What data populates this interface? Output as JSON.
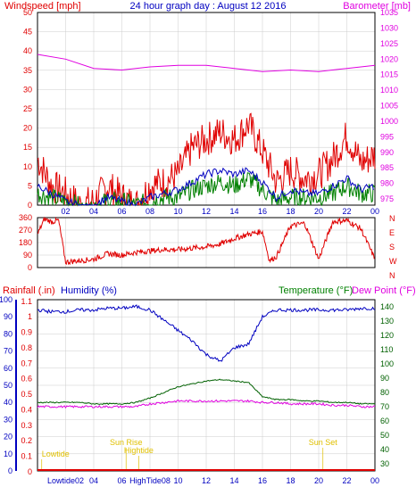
{
  "title": "24 hour graph day : August 12 2016",
  "colors": {
    "wind": "#e00000",
    "gust": "#e00000",
    "avgwind": "#0000c0",
    "green": "#008000",
    "baro": "#e000e0",
    "humidity": "#0000c0",
    "temp": "#006000",
    "dew": "#e000e0",
    "rain": "#e00000",
    "sun": "#e0c000",
    "grid": "#cccccc",
    "frame": "#000000"
  },
  "chart_data": [
    {
      "type": "line",
      "name": "wind-baro",
      "left_label": "Windspeed [mph]",
      "right_label": "Barometer [mb]",
      "x_ticks": [
        "02",
        "04",
        "06",
        "08",
        "10",
        "12",
        "14",
        "16",
        "18",
        "20",
        "22",
        "00"
      ],
      "y_left_ticks": [
        0,
        5,
        10,
        15,
        20,
        25,
        30,
        35,
        40,
        45,
        50
      ],
      "y_left_range": [
        0,
        50
      ],
      "y_right_ticks": [
        975,
        980,
        985,
        990,
        995,
        1000,
        1005,
        1010,
        1015,
        1020,
        1025,
        1030,
        1035
      ],
      "y_right_range": [
        973,
        1035
      ],
      "barometer": {
        "x": [
          0,
          2,
          4,
          6,
          8,
          10,
          12,
          14,
          16,
          18,
          20,
          22,
          24
        ],
        "y": [
          1021.5,
          1020,
          1017,
          1016.5,
          1017.5,
          1018,
          1018,
          1017,
          1016,
          1016.5,
          1016,
          1017,
          1018
        ]
      },
      "gust": {
        "x": [
          0,
          1,
          2,
          3,
          4,
          5,
          6,
          7,
          8,
          9,
          10,
          11,
          12,
          13,
          14,
          15,
          16,
          17,
          18,
          19,
          20,
          21,
          22,
          23,
          24
        ],
        "y": [
          12,
          5,
          3,
          0,
          1,
          5,
          2,
          0,
          5,
          6,
          8,
          15,
          17,
          19,
          17,
          21,
          14,
          6,
          9,
          7,
          8,
          12,
          18,
          11,
          13
        ]
      },
      "average": {
        "x": [
          0,
          1,
          2,
          3,
          4,
          5,
          6,
          7,
          8,
          9,
          10,
          11,
          12,
          13,
          14,
          15,
          16,
          17,
          18,
          19,
          20,
          21,
          22,
          23,
          24
        ],
        "y": [
          5,
          3,
          1,
          0,
          0,
          2,
          1,
          0,
          2,
          3,
          4,
          6,
          8,
          9,
          8,
          9,
          6,
          2,
          4,
          3,
          3,
          5,
          7,
          4,
          5
        ]
      },
      "direction_avg": {
        "x": [
          0,
          1,
          2,
          3,
          4,
          5,
          6,
          7,
          8,
          9,
          10,
          11,
          12,
          13,
          14,
          15,
          16,
          17,
          18,
          19,
          20,
          21,
          22,
          23,
          24
        ],
        "y": [
          3,
          2,
          1,
          0,
          0,
          1,
          1,
          0,
          1,
          2,
          2,
          4,
          5,
          6,
          5,
          7,
          4,
          1,
          2,
          2,
          2,
          3,
          5,
          3,
          3
        ]
      }
    },
    {
      "type": "scatter",
      "name": "wind-direction",
      "y_left_ticks": [
        0,
        90,
        180,
        270,
        360
      ],
      "y_right_labels": [
        "N",
        "W",
        "S",
        "E",
        "N"
      ],
      "y_range": [
        0,
        360
      ],
      "x": [
        0,
        0.5,
        1,
        1.5,
        2,
        3,
        4,
        5,
        6,
        7,
        8,
        9,
        10,
        11,
        12,
        13,
        14,
        15,
        16,
        16.5,
        17,
        18,
        19,
        20,
        21,
        22,
        23,
        24
      ],
      "y": [
        240,
        350,
        330,
        340,
        40,
        50,
        60,
        100,
        90,
        110,
        120,
        130,
        130,
        140,
        150,
        170,
        210,
        240,
        260,
        50,
        80,
        300,
        320,
        60,
        330,
        340,
        280,
        60
      ]
    },
    {
      "type": "line",
      "name": "humidity-temp-rain",
      "left_label_rain": "Rainfall (.in)",
      "left_label_hum": "Humidity (%)",
      "right_label_temp": "Temperature (°F)",
      "right_label_dew": "Dew Point (°F)",
      "x_ticks": [
        "Lowtide02",
        "04",
        "06",
        "HighTide08",
        "10",
        "12",
        "14",
        "16",
        "18",
        "20",
        "22",
        "00"
      ],
      "rain_ticks": [
        "0",
        "0.1",
        "0.2",
        "0.3",
        "0.4",
        "0.5",
        "0.6",
        "0.7",
        "0.8",
        "0.9",
        "1",
        "1.1"
      ],
      "hum_ticks": [
        0,
        10,
        20,
        30,
        40,
        50,
        60,
        70,
        80,
        90,
        100
      ],
      "temp_ticks": [
        30,
        40,
        50,
        60,
        70,
        80,
        90,
        100,
        110,
        120,
        130,
        140
      ],
      "humidity": {
        "x": [
          0,
          1,
          2,
          3,
          4,
          5,
          6,
          7,
          8,
          9,
          10,
          11,
          12,
          13,
          14,
          15,
          16,
          17,
          18,
          19,
          20,
          21,
          22,
          23,
          24
        ],
        "y": [
          94,
          93,
          93,
          94,
          94,
          95,
          95,
          96,
          94,
          88,
          82,
          76,
          68,
          64,
          72,
          74,
          90,
          94,
          94,
          94,
          94,
          94,
          94,
          95,
          95
        ]
      },
      "temperature": {
        "x": [
          0,
          1,
          2,
          3,
          4,
          5,
          6,
          7,
          8,
          9,
          10,
          11,
          12,
          13,
          14,
          15,
          16,
          17,
          18,
          19,
          20,
          21,
          22,
          23,
          24
        ],
        "y": [
          73,
          73,
          73,
          73,
          72,
          72,
          72,
          73,
          76,
          80,
          84,
          86,
          88,
          89,
          88,
          87,
          77,
          75,
          75,
          74,
          74,
          73,
          73,
          72,
          72
        ]
      },
      "dew_point": {
        "x": [
          0,
          1,
          2,
          3,
          4,
          5,
          6,
          7,
          8,
          9,
          10,
          11,
          12,
          13,
          14,
          15,
          16,
          17,
          18,
          19,
          20,
          21,
          22,
          23,
          24
        ],
        "y": [
          70,
          70,
          70,
          70,
          70,
          70,
          70,
          70,
          72,
          73,
          74,
          74,
          74,
          74,
          74,
          74,
          73,
          73,
          72,
          72,
          72,
          71,
          71,
          70,
          70
        ]
      },
      "rainfall": {
        "x": [
          0,
          24
        ],
        "y": [
          0,
          0
        ]
      },
      "annotations": [
        {
          "text": "Lowtide",
          "x": 0.3
        },
        {
          "text": "Sun Rise",
          "x": 6.3
        },
        {
          "text": "Hightide",
          "x": 7.2
        },
        {
          "text": "Sun Set",
          "x": 20.3
        }
      ]
    }
  ]
}
